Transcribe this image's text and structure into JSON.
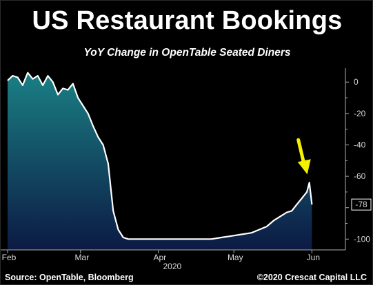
{
  "title": "US Restaurant Bookings",
  "subtitle": "YoY Change in OpenTable Seated Diners",
  "footer": {
    "source": "Source: OpenTable, Bloomberg",
    "copyright": "©2020 Crescat Capital LLC"
  },
  "colors": {
    "background": "#000000",
    "line": "#ffffff",
    "area_top": "#1a7f84",
    "area_bottom": "#0c1a44",
    "arrow": "#f5f000",
    "axis": "#b0b0b0"
  },
  "chart_data": {
    "type": "area",
    "x_start": "2020-02-01",
    "x_end": "2020-06-02",
    "x": [
      "2020-02-01",
      "2020-02-03",
      "2020-02-05",
      "2020-02-07",
      "2020-02-09",
      "2020-02-11",
      "2020-02-13",
      "2020-02-15",
      "2020-02-17",
      "2020-02-19",
      "2020-02-21",
      "2020-02-23",
      "2020-02-25",
      "2020-02-27",
      "2020-02-29",
      "2020-03-02",
      "2020-03-04",
      "2020-03-06",
      "2020-03-08",
      "2020-03-10",
      "2020-03-12",
      "2020-03-14",
      "2020-03-16",
      "2020-03-18",
      "2020-03-20",
      "2020-03-22",
      "2020-04-01",
      "2020-04-15",
      "2020-04-22",
      "2020-04-26",
      "2020-04-30",
      "2020-05-04",
      "2020-05-08",
      "2020-05-11",
      "2020-05-14",
      "2020-05-17",
      "2020-05-20",
      "2020-05-22",
      "2020-05-24",
      "2020-05-25",
      "2020-05-26",
      "2020-05-27",
      "2020-05-28",
      "2020-05-29",
      "2020-05-30",
      "2020-05-31",
      "2020-06-01"
    ],
    "values": [
      1,
      4,
      3,
      -2,
      6,
      2,
      4,
      -2,
      4,
      0,
      -8,
      -4,
      -5,
      -1,
      -10,
      -15,
      -20,
      -28,
      -35,
      -40,
      -52,
      -82,
      -94,
      -99,
      -100,
      -100,
      -100,
      -100,
      -100,
      -99,
      -98,
      -97,
      -96,
      -94,
      -92,
      -88,
      -85,
      -83,
      -82,
      -80,
      -78,
      -76,
      -74,
      -72,
      -70,
      -64,
      -78
    ],
    "yticks": [
      0,
      -20,
      -40,
      -60,
      -80,
      -100
    ],
    "ylim": [
      -106,
      8
    ],
    "xtick_labels": [
      "Feb",
      "Mar",
      "Apr",
      "May",
      "Jun"
    ],
    "xtick_dates": [
      "2020-02-01",
      "2020-03-01",
      "2020-04-01",
      "2020-05-01",
      "2020-06-01"
    ],
    "year_label": "2020",
    "last_value_label": "-78",
    "y_axis_position": "right",
    "grid": false,
    "legend": "none",
    "xlabel": "",
    "ylabel": ""
  }
}
